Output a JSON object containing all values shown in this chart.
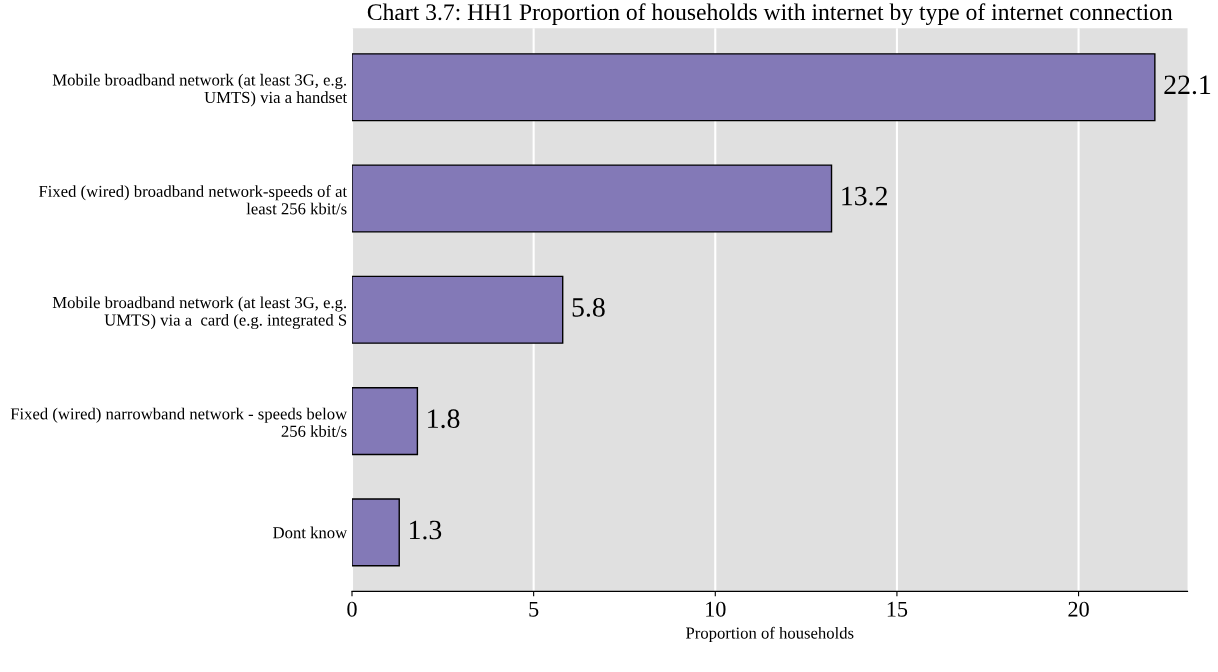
{
  "chart_data": {
    "type": "bar",
    "orientation": "horizontal",
    "title": "Chart 3.7: HH1 Proportion of households with internet by type of internet connection",
    "xlabel": "Proportion of households",
    "categories": [
      "Mobile broadband network (at least 3G, e.g.\nUMTS) via a handset",
      "Fixed (wired) broadband network-speeds of at\nleast 256 kbit/s",
      "Mobile broadband network (at least 3G, e.g.\nUMTS) via a  card (e.g. integrated S",
      "Fixed (wired) narrowband network - speeds below\n256 kbit/s",
      "Dont know"
    ],
    "values": [
      22.1,
      13.2,
      5.8,
      1.8,
      1.3
    ],
    "color": "#8379b7",
    "xlim": [
      0,
      23
    ],
    "xticks": [
      0,
      5,
      10,
      15,
      20
    ],
    "grid": "x",
    "data_labels": true
  }
}
